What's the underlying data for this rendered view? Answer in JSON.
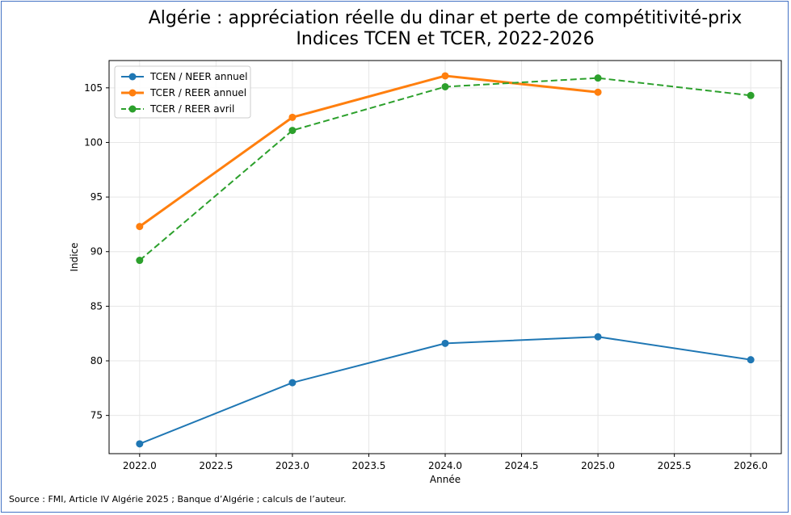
{
  "chart_data": {
    "type": "line",
    "title": "Algérie : appréciation réelle du dinar et perte de compétitivité-prix",
    "subtitle": "Indices TCEN et TCER, 2022-2026",
    "xlabel": "Année",
    "ylabel": "Indice",
    "xlim": [
      1900.0,
      2026.2
    ],
    "ylim": [
      71.5,
      107.5
    ],
    "x_ticks": [
      2022.0,
      2022.5,
      2023.0,
      2023.5,
      2024.0,
      2024.5,
      2025.0,
      2025.5,
      2026.0
    ],
    "x_tick_labels": [
      "2022.0",
      "2022.5",
      "2023.0",
      "2023.5",
      "2024.0",
      "2024.5",
      "2025.0",
      "2025.5",
      "2026.0"
    ],
    "y_ticks": [
      75,
      80,
      85,
      90,
      95,
      100,
      105
    ],
    "y_tick_labels": [
      "75",
      "80",
      "85",
      "90",
      "95",
      "100",
      "105"
    ],
    "grid": true,
    "legend_position": "top-left",
    "series": [
      {
        "name": "TCEN / NEER annuel",
        "color": "#1f77b4",
        "style": "solid",
        "points": [
          {
            "x": 2022,
            "y": 72.4
          },
          {
            "x": 2023,
            "y": 78.0
          },
          {
            "x": 2024,
            "y": 81.6
          },
          {
            "x": 2025,
            "y": 82.2
          },
          {
            "x": 2026,
            "y": 80.1
          }
        ]
      },
      {
        "name": "TCER / REER annuel",
        "color": "#ff7f0e",
        "style": "solid",
        "points": [
          {
            "x": 2022,
            "y": 92.3
          },
          {
            "x": 2023,
            "y": 102.3
          },
          {
            "x": 2024,
            "y": 106.1
          },
          {
            "x": 2025,
            "y": 104.6
          }
        ]
      },
      {
        "name": "TCER / REER avril",
        "color": "#2ca02c",
        "style": "dashed",
        "points": [
          {
            "x": 2022,
            "y": 89.2
          },
          {
            "x": 2023,
            "y": 101.1
          },
          {
            "x": 2024,
            "y": 105.1
          },
          {
            "x": 2025,
            "y": 105.9
          },
          {
            "x": 2026,
            "y": 104.3
          }
        ]
      }
    ]
  },
  "source": "Source : FMI, Article IV Algérie 2025 ; Banque d’Algérie ; calculs de l’auteur."
}
